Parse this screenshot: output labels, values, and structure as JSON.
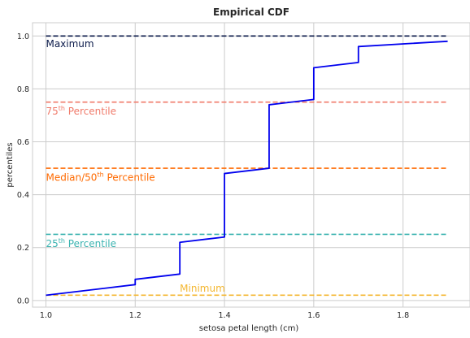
{
  "chart_data": {
    "type": "line",
    "title": "Empirical CDF",
    "xlabel": "setosa petal length (cm)",
    "ylabel": "percentiles",
    "xlim": [
      0.97,
      1.95
    ],
    "ylim": [
      -0.025,
      1.05
    ],
    "grid": true,
    "x_ticks": [
      1.0,
      1.2,
      1.4,
      1.6,
      1.8
    ],
    "x_tick_labels": [
      "1.0",
      "1.2",
      "1.4",
      "1.6",
      "1.8"
    ],
    "y_ticks": [
      0.0,
      0.2,
      0.4,
      0.6,
      0.8,
      1.0
    ],
    "y_tick_labels": [
      "0.0",
      "0.2",
      "0.4",
      "0.6",
      "0.8",
      "1.0"
    ],
    "series": [
      {
        "color": "#0000ee",
        "x": [
          1.0,
          1.2,
          1.2,
          1.3,
          1.3,
          1.4,
          1.4,
          1.5,
          1.5,
          1.6,
          1.6,
          1.7,
          1.7,
          1.9
        ],
        "y": [
          0.02,
          0.06,
          0.08,
          0.1,
          0.22,
          0.24,
          0.48,
          0.5,
          0.74,
          0.76,
          0.88,
          0.9,
          0.96,
          0.98
        ]
      }
    ],
    "reference_lines": [
      {
        "y": 1.0,
        "color": "#0b1a4a",
        "label": "Maximum",
        "label_x": 1.0,
        "label_y": 0.97,
        "sup": "",
        "suffix": ""
      },
      {
        "y": 0.75,
        "color": "#f07a6a",
        "label": "75",
        "label_x": 1.0,
        "label_y": 0.715,
        "sup": "th",
        "suffix": " Percentile"
      },
      {
        "y": 0.5,
        "color": "#ff6a00",
        "label": "Median/50",
        "label_x": 1.0,
        "label_y": 0.465,
        "sup": "th",
        "suffix": " Percentile"
      },
      {
        "y": 0.25,
        "color": "#3bb3b0",
        "label": "25",
        "label_x": 1.0,
        "label_y": 0.215,
        "sup": "th",
        "suffix": " Percentile"
      },
      {
        "y": 0.02,
        "color": "#f4b731",
        "label": "Minimum",
        "label_x": 1.3,
        "label_y": 0.045,
        "sup": "",
        "suffix": ""
      }
    ],
    "ref_line_x_range": [
      1.0,
      1.9
    ]
  }
}
